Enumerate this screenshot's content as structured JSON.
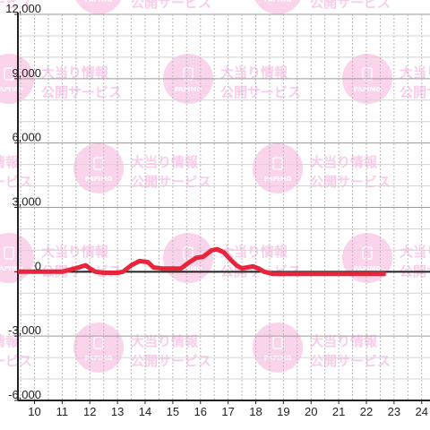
{
  "watermark": {
    "brand": "PAPIMO",
    "line1": "大当り情報",
    "line2": "公開サービス"
  },
  "chart_data": {
    "type": "line",
    "xlim": [
      9.4,
      24.3
    ],
    "ylim": [
      -6000,
      12000
    ],
    "x_ticks": [
      10,
      11,
      12,
      13,
      14,
      15,
      16,
      17,
      18,
      19,
      20,
      21,
      22,
      23,
      24
    ],
    "x_tick_labels": [
      "10",
      "11",
      "12",
      "13",
      "14",
      "15",
      "16",
      "17",
      "18",
      "19",
      "20",
      "21",
      "22",
      "23",
      "24"
    ],
    "y_ticks": [
      -6000,
      -3000,
      0,
      3000,
      6000,
      9000,
      12000
    ],
    "y_tick_labels": [
      "-6,000",
      "-3,000",
      "0",
      "3,000",
      "6,000",
      "9,000",
      "12,000"
    ],
    "grid": true,
    "series": [
      {
        "color": "#e8253a",
        "x": [
          9.4,
          10.5,
          11.0,
          11.3,
          11.6,
          11.85,
          12.0,
          12.2,
          12.5,
          13.0,
          13.2,
          13.5,
          13.8,
          14.1,
          14.3,
          14.6,
          15.0,
          15.3,
          15.6,
          15.85,
          16.1,
          16.4,
          16.6,
          16.85,
          17.1,
          17.3,
          17.5,
          17.7,
          17.9,
          18.1,
          18.3,
          18.6,
          19.0,
          20.0,
          21.0,
          22.0,
          22.7
        ],
        "y": [
          0,
          0,
          0,
          100,
          200,
          300,
          150,
          0,
          -50,
          -50,
          0,
          300,
          500,
          450,
          200,
          150,
          150,
          150,
          450,
          650,
          700,
          1000,
          1050,
          900,
          550,
          300,
          150,
          200,
          250,
          150,
          0,
          -100,
          -100,
          -100,
          -100,
          -100,
          -100
        ]
      }
    ]
  }
}
